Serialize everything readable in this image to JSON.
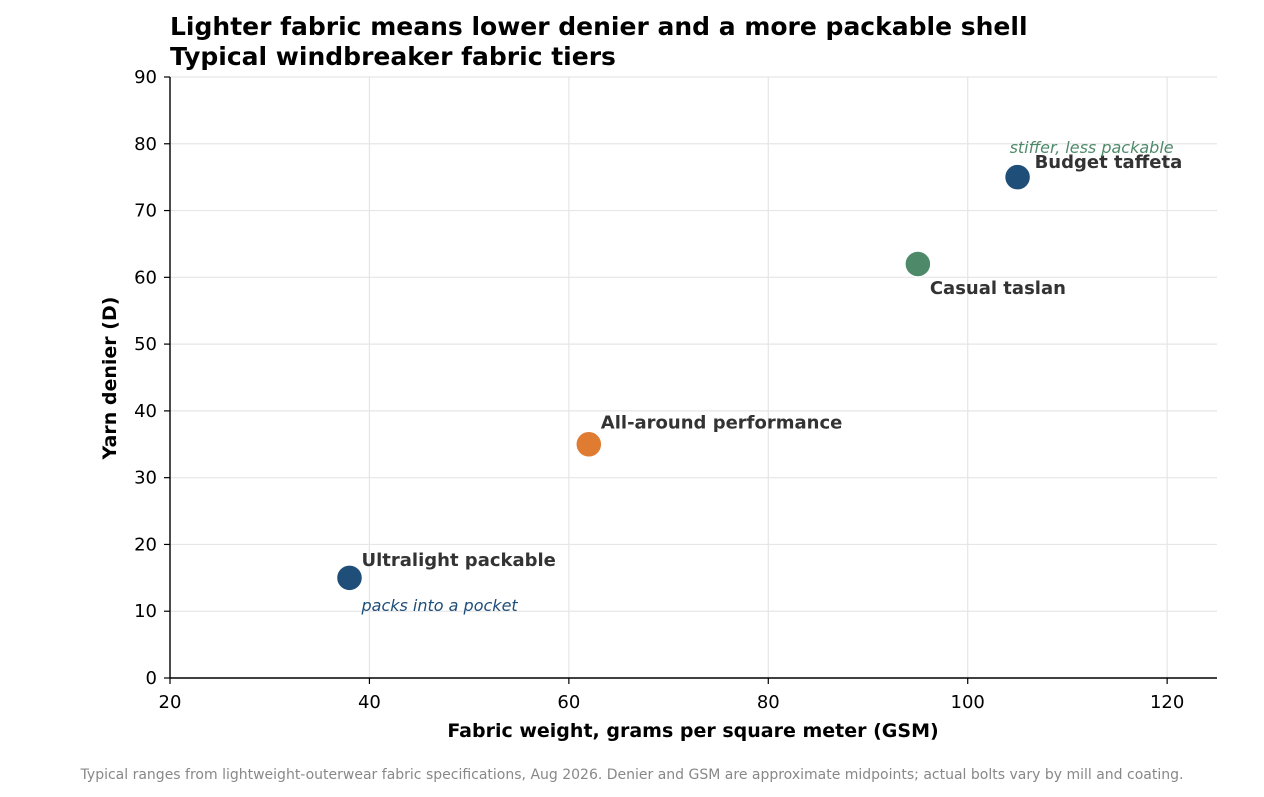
{
  "chart_data": {
    "type": "scatter",
    "title": "Lighter fabric means lower denier and a more packable shell",
    "subtitle": "Typical windbreaker fabric tiers",
    "xlabel": "Fabric weight, grams per square meter (GSM)",
    "ylabel": "Yarn denier (D)",
    "xlim": [
      20,
      125
    ],
    "ylim": [
      0,
      90
    ],
    "xticks": [
      20,
      40,
      60,
      80,
      100,
      120
    ],
    "yticks": [
      0,
      10,
      20,
      30,
      40,
      50,
      60,
      70,
      80,
      90
    ],
    "grid": true,
    "points": [
      {
        "label": "Ultralight packable",
        "x": 38,
        "y": 15,
        "color": "#1f4e79"
      },
      {
        "label": "All-around performance",
        "x": 62,
        "y": 35,
        "color": "#e07b32"
      },
      {
        "label": "Casual taslan",
        "x": 95,
        "y": 62,
        "color": "#4e8a6a"
      },
      {
        "label": "Budget taffeta",
        "x": 105,
        "y": 75,
        "color": "#1f4e79"
      }
    ],
    "annotations": [
      {
        "text": "packs into a pocket",
        "color": "#1f4e79"
      },
      {
        "text": "stiffer, less packable",
        "color": "#4e8a6a"
      }
    ],
    "source": "Typical ranges from lightweight-outerwear fabric specifications, Aug 2026. Denier and GSM are approximate midpoints; actual bolts vary by mill and coating."
  }
}
